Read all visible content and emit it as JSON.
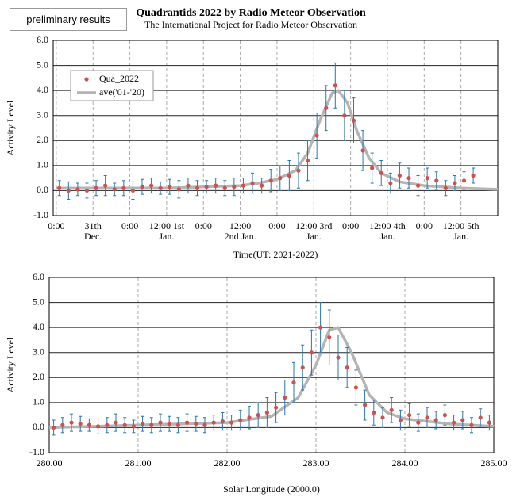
{
  "header": {
    "badge": "preliminary results",
    "title": "Quadrantids 2022 by Radio Meteor Observation",
    "subtitle": "The International Project for Radio Meteor Observation"
  },
  "chart_data": [
    {
      "type": "scatter",
      "xlabel": "Time(UT: 2021-2022)",
      "ylabel": "Activity Level",
      "legend": "upper left",
      "grid": true,
      "xlim": [
        -1,
        144
      ],
      "ylim": [
        -1,
        6
      ],
      "xticks": [
        {
          "value": 0,
          "label": "0:00"
        },
        {
          "value": 12,
          "label": "31th\nDec."
        },
        {
          "value": 24,
          "label": "0:00"
        },
        {
          "value": 36,
          "label": "12:00 1st\nJan."
        },
        {
          "value": 48,
          "label": "0:00"
        },
        {
          "value": 60,
          "label": "12:00\n2nd Jan."
        },
        {
          "value": 72,
          "label": "0:00"
        },
        {
          "value": 84,
          "label": "12:00 3rd\nJan."
        },
        {
          "value": 96,
          "label": "0:00"
        },
        {
          "value": 108,
          "label": "12:00 4th\nJan."
        },
        {
          "value": 120,
          "label": "0:00"
        },
        {
          "value": 132,
          "label": "12:00 5th\nJan."
        }
      ],
      "yticks": [
        {
          "value": -1,
          "label": "-1.0"
        },
        {
          "value": 0,
          "label": "0.0"
        },
        {
          "value": 1,
          "label": "1.0"
        },
        {
          "value": 2,
          "label": "2.0"
        },
        {
          "value": 3,
          "label": "3.0"
        },
        {
          "value": 4,
          "label": "4.0"
        },
        {
          "value": 5,
          "label": "5.0"
        },
        {
          "value": 6,
          "label": "6.0"
        }
      ],
      "series": [
        {
          "name": "Qua_2022",
          "type": "scatter",
          "color": "#d0504d",
          "error_color": "#2a76b0",
          "x": [
            1,
            4,
            7,
            10,
            13,
            16,
            19,
            22,
            25,
            28,
            31,
            34,
            37,
            40,
            43,
            46,
            49,
            52,
            55,
            58,
            61,
            64,
            67,
            70,
            73,
            76,
            79,
            82,
            85,
            88,
            91,
            94,
            97,
            100,
            103,
            106,
            109,
            112,
            115,
            118,
            121,
            124,
            127,
            130,
            133,
            136
          ],
          "values": [
            0.1,
            0,
            0.05,
            0,
            0.1,
            0.2,
            0.05,
            0.1,
            0,
            0.15,
            0.2,
            0.1,
            0.15,
            0.05,
            0.2,
            0.1,
            0.15,
            0.2,
            0.1,
            0.15,
            0.2,
            0.3,
            0.2,
            0.4,
            0.5,
            0.6,
            0.8,
            1.2,
            2.2,
            3.3,
            4.2,
            3,
            2.8,
            1.6,
            0.9,
            0.7,
            0.3,
            0.6,
            0.5,
            0.2,
            0.5,
            0.4,
            0.1,
            0.3,
            0.4,
            0.6
          ],
          "errors": [
            0.3,
            0.35,
            0.25,
            0.3,
            0.3,
            0.4,
            0.25,
            0.3,
            0.35,
            0.3,
            0.3,
            0.25,
            0.3,
            0.35,
            0.3,
            0.3,
            0.25,
            0.3,
            0.3,
            0.35,
            0.3,
            0.4,
            0.3,
            0.45,
            0.5,
            0.6,
            0.7,
            0.8,
            0.9,
            0.9,
            0.9,
            1,
            0.9,
            0.8,
            0.6,
            0.5,
            0.4,
            0.5,
            0.4,
            0.4,
            0.4,
            0.35,
            0.3,
            0.3,
            0.35,
            0.3
          ]
        },
        {
          "name": "ave('01-'20)",
          "type": "line",
          "color": "#b4b4b4",
          "x": [
            0,
            12,
            24,
            36,
            48,
            60,
            66,
            72,
            78,
            82,
            86,
            90,
            92,
            95,
            98,
            102,
            106,
            112,
            120,
            132,
            144
          ],
          "values": [
            0.1,
            0.1,
            0.1,
            0.1,
            0.15,
            0.2,
            0.3,
            0.45,
            0.8,
            1.5,
            2.8,
            3.9,
            4,
            3.5,
            2.4,
            1.3,
            0.7,
            0.35,
            0.2,
            0.1,
            0.05
          ]
        }
      ]
    },
    {
      "type": "scatter",
      "xlabel": "Solar Longitude (2000.0)",
      "ylabel": "Activity Level",
      "grid": true,
      "xlim": [
        280,
        285
      ],
      "ylim": [
        -1,
        6
      ],
      "xticks": [
        {
          "value": 280,
          "label": "280.00"
        },
        {
          "value": 281,
          "label": "281.00"
        },
        {
          "value": 282,
          "label": "282.00"
        },
        {
          "value": 283,
          "label": "283.00"
        },
        {
          "value": 284,
          "label": "284.00"
        },
        {
          "value": 285,
          "label": "285.00"
        }
      ],
      "yticks": [
        {
          "value": -1,
          "label": "-1.0"
        },
        {
          "value": 0,
          "label": "0.0"
        },
        {
          "value": 1,
          "label": "1.0"
        },
        {
          "value": 2,
          "label": "2.0"
        },
        {
          "value": 3,
          "label": "3.0"
        },
        {
          "value": 4,
          "label": "4.0"
        },
        {
          "value": 5,
          "label": "5.0"
        },
        {
          "value": 6,
          "label": "6.0"
        }
      ],
      "series": [
        {
          "name": "Qua_2022",
          "type": "scatter",
          "color": "#d0504d",
          "error_color": "#2a76b0",
          "x": [
            280.05,
            280.15,
            280.25,
            280.35,
            280.45,
            280.55,
            280.65,
            280.75,
            280.85,
            280.95,
            281.05,
            281.15,
            281.25,
            281.35,
            281.45,
            281.55,
            281.65,
            281.75,
            281.85,
            281.95,
            282.05,
            282.15,
            282.25,
            282.35,
            282.45,
            282.55,
            282.65,
            282.75,
            282.85,
            282.95,
            283.05,
            283.15,
            283.25,
            283.35,
            283.45,
            283.55,
            283.65,
            283.75,
            283.85,
            283.95,
            284.05,
            284.15,
            284.25,
            284.35,
            284.45,
            284.55,
            284.65,
            284.75,
            284.85,
            284.95
          ],
          "values": [
            0,
            0.1,
            0.2,
            0.15,
            0.1,
            0.05,
            0.1,
            0.2,
            0.1,
            0.05,
            0.15,
            0.1,
            0.2,
            0.15,
            0.1,
            0.2,
            0.15,
            0.1,
            0.2,
            0.25,
            0.2,
            0.3,
            0.4,
            0.5,
            0.6,
            0.8,
            1.2,
            1.8,
            2.4,
            3,
            4,
            3.6,
            2.8,
            2.4,
            1.6,
            0.9,
            0.6,
            0.4,
            0.7,
            0.3,
            0.5,
            0.2,
            0.4,
            0.3,
            0.5,
            0.2,
            0.3,
            0.1,
            0.4,
            0.2
          ],
          "errors": [
            0.3,
            0.3,
            0.35,
            0.3,
            0.25,
            0.3,
            0.3,
            0.35,
            0.3,
            0.25,
            0.3,
            0.3,
            0.35,
            0.3,
            0.3,
            0.35,
            0.3,
            0.3,
            0.3,
            0.35,
            0.3,
            0.4,
            0.45,
            0.5,
            0.6,
            0.6,
            0.7,
            0.8,
            0.9,
            0.9,
            1,
            1.1,
            0.9,
            0.8,
            0.7,
            0.6,
            0.5,
            0.4,
            0.5,
            0.4,
            0.45,
            0.35,
            0.4,
            0.35,
            0.4,
            0.3,
            0.35,
            0.3,
            0.35,
            0.3
          ]
        },
        {
          "name": "ave('01-'20)",
          "type": "line",
          "color": "#b4b4b4",
          "x": [
            280,
            281,
            282,
            282.5,
            282.8,
            283,
            283.15,
            283.25,
            283.4,
            283.6,
            283.8,
            284,
            284.5,
            285
          ],
          "values": [
            0,
            0.1,
            0.2,
            0.45,
            1.2,
            2.5,
            3.9,
            4,
            3,
            1.3,
            0.6,
            0.35,
            0.15,
            0.05
          ]
        }
      ]
    }
  ]
}
